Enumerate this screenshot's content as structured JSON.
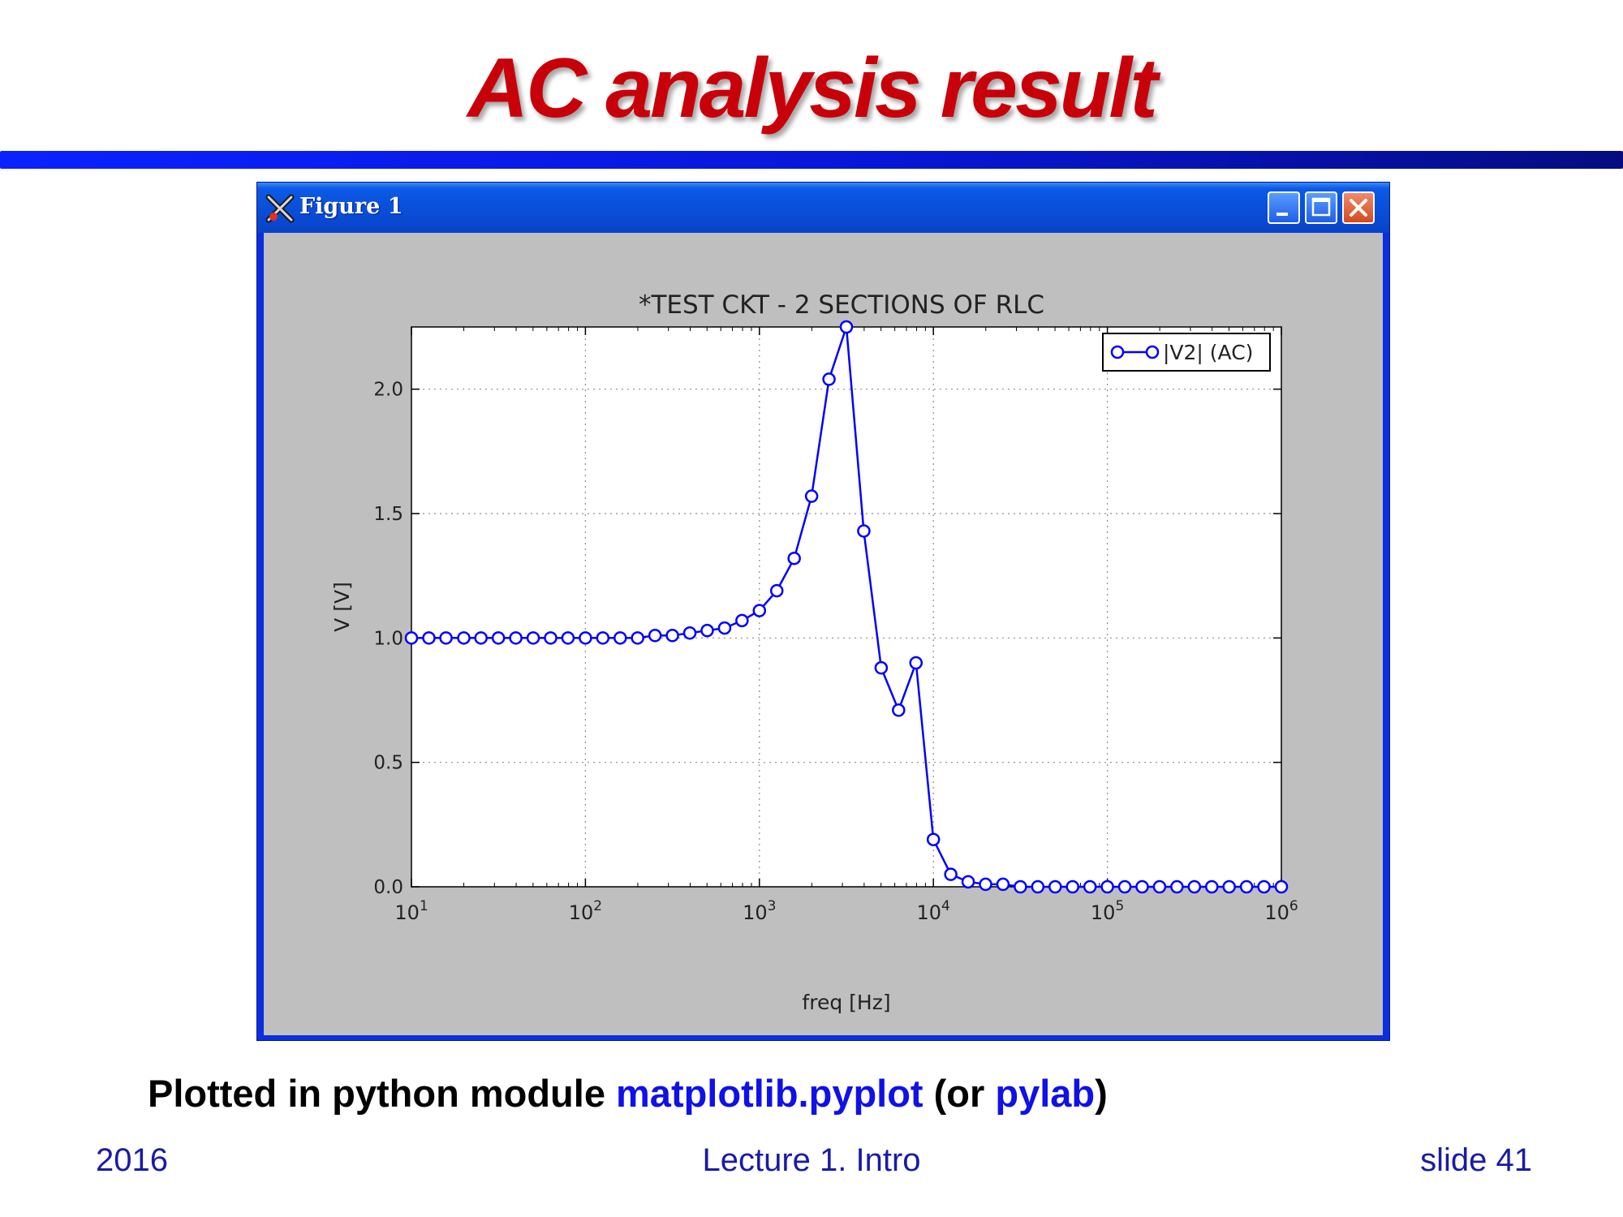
{
  "slide": {
    "title": "AC analysis result",
    "caption": {
      "prefix": "Plotted in python module ",
      "module": "matplotlib.pyplot",
      "middle": " (or ",
      "alt": "pylab",
      "suffix": ")"
    },
    "footer": {
      "left": "2016",
      "center": "Lecture 1. Intro",
      "right": "slide 41"
    }
  },
  "window": {
    "title": "Figure 1"
  },
  "colors": {
    "title": "#c8000a",
    "rule": "#0816d6",
    "series": "#0000ff",
    "highlight": "#1010e8",
    "footer": "#1a1aa8"
  },
  "chart_data": {
    "type": "line",
    "title": "*TEST CKT - 2 SECTIONS OF RLC",
    "xlabel": "freq [Hz]",
    "ylabel": "V [V]",
    "xscale": "log",
    "xlim": [
      10,
      1000000
    ],
    "ylim": [
      0,
      2.25
    ],
    "xticks": [
      10,
      100,
      1000,
      10000,
      100000,
      1000000
    ],
    "xtick_labels": [
      {
        "base": "10",
        "exp": "1"
      },
      {
        "base": "10",
        "exp": "2"
      },
      {
        "base": "10",
        "exp": "3"
      },
      {
        "base": "10",
        "exp": "4"
      },
      {
        "base": "10",
        "exp": "5"
      },
      {
        "base": "10",
        "exp": "6"
      }
    ],
    "yticks": [
      0,
      0.5,
      1,
      1.5,
      2
    ],
    "ytick_labels": [
      "0.0",
      "0.5",
      "1.0",
      "1.5",
      "2.0"
    ],
    "grid": true,
    "legend_position": "top-right",
    "series": [
      {
        "name": "|V2| (AC)",
        "color": "#0000ff",
        "marker": "o",
        "x": [
          10,
          12.6,
          15.8,
          20,
          25.1,
          31.6,
          39.8,
          50.1,
          63.1,
          79.4,
          100,
          125.9,
          158.5,
          199.5,
          251.2,
          316.2,
          398.1,
          501.2,
          631,
          794.3,
          1000,
          1258.9,
          1584.9,
          1995.3,
          2511.9,
          3162.3,
          3981.1,
          5011.9,
          6309.6,
          7943.3,
          10000,
          12589.3,
          15848.9,
          19952.6,
          25118.9,
          31622.8,
          39810.7,
          50118.7,
          63095.7,
          79432.8,
          100000,
          125892.5,
          158489.3,
          199526.2,
          251188.6,
          316227.8,
          398107.2,
          501187.2,
          630957.3,
          794328.2,
          1000000
        ],
        "y": [
          1.0,
          1.0,
          1.0,
          1.0,
          1.0,
          1.0,
          1.0,
          1.0,
          1.0,
          1.0,
          1.0,
          1.0,
          1.0,
          1.0,
          1.01,
          1.01,
          1.02,
          1.03,
          1.04,
          1.07,
          1.11,
          1.19,
          1.32,
          1.57,
          2.04,
          2.25,
          1.43,
          0.88,
          0.71,
          0.9,
          0.19,
          0.05,
          0.02,
          0.01,
          0.01,
          0.0,
          0.0,
          0.0,
          0.0,
          0.0,
          0.0,
          0.0,
          0.0,
          0.0,
          0.0,
          0.0,
          0.0,
          0.0,
          0.0,
          0.0,
          0.0
        ]
      }
    ]
  }
}
